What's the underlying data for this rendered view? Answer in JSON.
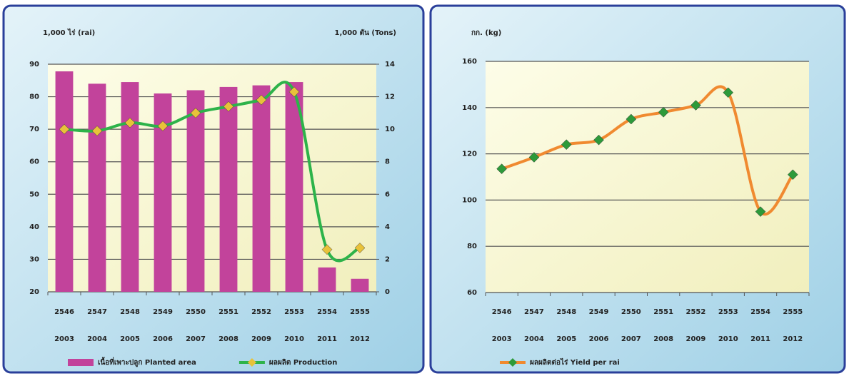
{
  "chart_data": [
    {
      "type": "combo",
      "y_label": "1,000 ไร่ (rai)",
      "y2_label": "1,000 ตัน (Tons)",
      "categories": [
        [
          "2546",
          "2003"
        ],
        [
          "2547",
          "2004"
        ],
        [
          "2548",
          "2005"
        ],
        [
          "2549",
          "2006"
        ],
        [
          "2550",
          "2007"
        ],
        [
          "2551",
          "2008"
        ],
        [
          "2552",
          "2009"
        ],
        [
          "2553",
          "2010"
        ],
        [
          "2554",
          "2011"
        ],
        [
          "2555",
          "2012"
        ]
      ],
      "series": [
        {
          "name": "เนื้อที่เพาะปลูก Planted area",
          "type": "bar",
          "color": "#c2439b",
          "values": [
            87.8,
            84,
            84.5,
            81,
            82,
            83,
            83.5,
            84.5,
            27.5,
            24
          ]
        },
        {
          "name": "ผลผลิต Production",
          "type": "line",
          "axis": "y2",
          "color": "#2db34a",
          "marker_color": "#e8c23a",
          "values": [
            10.0,
            9.9,
            10.4,
            10.2,
            11.0,
            11.4,
            11.8,
            12.3,
            2.6,
            2.7
          ]
        }
      ],
      "ylim": [
        20,
        90
      ],
      "yticks": [
        20,
        30,
        40,
        50,
        60,
        70,
        80,
        90
      ],
      "y2lim": [
        0,
        14
      ],
      "y2ticks": [
        0,
        2,
        4,
        6,
        8,
        10,
        12,
        14
      ],
      "grid": true,
      "legend": "bottom"
    },
    {
      "type": "line",
      "y_label": "กก. (kg)",
      "categories": [
        [
          "2546",
          "2003"
        ],
        [
          "2547",
          "2004"
        ],
        [
          "2548",
          "2005"
        ],
        [
          "2549",
          "2006"
        ],
        [
          "2550",
          "2007"
        ],
        [
          "2551",
          "2008"
        ],
        [
          "2552",
          "2009"
        ],
        [
          "2553",
          "2010"
        ],
        [
          "2554",
          "2011"
        ],
        [
          "2555",
          "2012"
        ]
      ],
      "series": [
        {
          "name": "ผลผลิตต่อไร่ Yield per rai",
          "type": "line",
          "color": "#f08a30",
          "marker_color": "#2d9a3a",
          "values": [
            113.5,
            118.5,
            124,
            126,
            135,
            138,
            141,
            146.5,
            95,
            111
          ]
        }
      ],
      "ylim": [
        60,
        160
      ],
      "yticks": [
        60,
        80,
        100,
        120,
        140,
        160
      ],
      "grid": true,
      "legend": "bottom"
    }
  ]
}
